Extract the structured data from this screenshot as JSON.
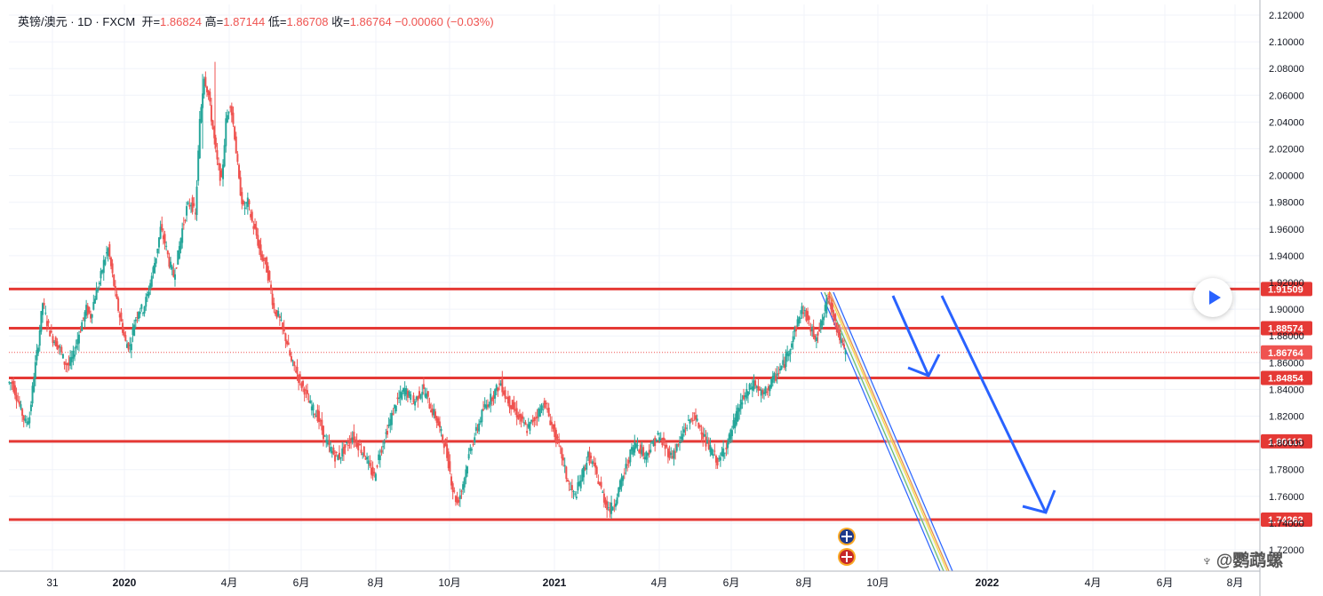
{
  "legend": {
    "symbol": "英镑/澳元",
    "sep1": " · ",
    "interval": "1D",
    "sep2": " · ",
    "source": "FXCM",
    "open_label": "开=",
    "open": "1.86824",
    "high_label": "高=",
    "high": "1.87144",
    "low_label": "低=",
    "low": "1.86708",
    "close_label": "收=",
    "close": "1.86764",
    "change": "−0.00060",
    "change_pct": "(−0.03%)"
  },
  "watermark": {
    "text": "@鹦鹉螺"
  },
  "chart_data": {
    "type": "line",
    "title": "",
    "ylim": [
      1.7,
      2.13
    ],
    "y_ticks": [
      "2.12000",
      "2.10000",
      "2.08000",
      "2.06000",
      "2.04000",
      "2.02000",
      "2.00000",
      "1.98000",
      "1.96000",
      "1.94000",
      "1.92000",
      "1.90000",
      "1.88000",
      "1.86000",
      "1.84000",
      "1.82000",
      "1.80000",
      "1.78000",
      "1.76000",
      "1.74000",
      "1.72000"
    ],
    "x_ticks": [
      "31",
      "2020",
      "4月",
      "6月",
      "8月",
      "10月",
      "2021",
      "4月",
      "6月",
      "8月",
      "10月",
      "2022",
      "4月",
      "6月",
      "8月"
    ],
    "grid": true,
    "colors": {
      "up": "#26a69a",
      "down": "#ef5350",
      "level": "#e53935",
      "arrow": "#2962ff",
      "channel": "#2962ff"
    },
    "series": [
      {
        "values": [
          1.845,
          1.835,
          1.825,
          1.815,
          1.82,
          1.85,
          1.875,
          1.905,
          1.89,
          1.88,
          1.875,
          1.87,
          1.86,
          1.858,
          1.865,
          1.878,
          1.89,
          1.9,
          1.895,
          1.91,
          1.92,
          1.935,
          1.945,
          1.925,
          1.905,
          1.89,
          1.875,
          1.872,
          1.89,
          1.9,
          1.9,
          1.91,
          1.925,
          1.94,
          1.96,
          1.95,
          1.935,
          1.925,
          1.94,
          1.96,
          1.975,
          1.98,
          1.97,
          2.04,
          2.075,
          2.06,
          2.035,
          2.01,
          1.995,
          2.04,
          2.055,
          2.03,
          1.995,
          1.975,
          1.98,
          1.965,
          1.955,
          1.94,
          1.935,
          1.92,
          1.9,
          1.895,
          1.885,
          1.875,
          1.86,
          1.855,
          1.845,
          1.84,
          1.83,
          1.825,
          1.82,
          1.81,
          1.8,
          1.795,
          1.79,
          1.79,
          1.795,
          1.8,
          1.805,
          1.8,
          1.795,
          1.79,
          1.78,
          1.775,
          1.79,
          1.8,
          1.81,
          1.82,
          1.83,
          1.835,
          1.84,
          1.835,
          1.83,
          1.835,
          1.84,
          1.835,
          1.825,
          1.82,
          1.81,
          1.8,
          1.785,
          1.765,
          1.755,
          1.765,
          1.78,
          1.795,
          1.805,
          1.815,
          1.825,
          1.83,
          1.835,
          1.84,
          1.845,
          1.835,
          1.83,
          1.825,
          1.82,
          1.815,
          1.81,
          1.815,
          1.82,
          1.825,
          1.83,
          1.82,
          1.81,
          1.8,
          1.79,
          1.775,
          1.765,
          1.76,
          1.77,
          1.78,
          1.79,
          1.785,
          1.775,
          1.765,
          1.755,
          1.75,
          1.755,
          1.765,
          1.775,
          1.785,
          1.795,
          1.8,
          1.795,
          1.79,
          1.795,
          1.8,
          1.805,
          1.8,
          1.795,
          1.79,
          1.795,
          1.8,
          1.81,
          1.815,
          1.82,
          1.815,
          1.81,
          1.8,
          1.795,
          1.79,
          1.785,
          1.795,
          1.8,
          1.81,
          1.82,
          1.83,
          1.835,
          1.84,
          1.845,
          1.84,
          1.835,
          1.84,
          1.845,
          1.85,
          1.855,
          1.86,
          1.87,
          1.88,
          1.89,
          1.9,
          1.895,
          1.885,
          1.88,
          1.885,
          1.895,
          1.91,
          1.9,
          1.885,
          1.875,
          1.867
        ]
      }
    ],
    "levels": [
      {
        "value": 1.91509,
        "label": "1.91509"
      },
      {
        "value": 1.88574,
        "label": "1.88574"
      },
      {
        "value": 1.84854,
        "label": "1.84854"
      },
      {
        "value": 1.80113,
        "label": "1.80113"
      },
      {
        "value": 1.74262,
        "label": "1.74262"
      }
    ],
    "current_price": {
      "value": 1.86764,
      "label": "1.86764"
    }
  }
}
